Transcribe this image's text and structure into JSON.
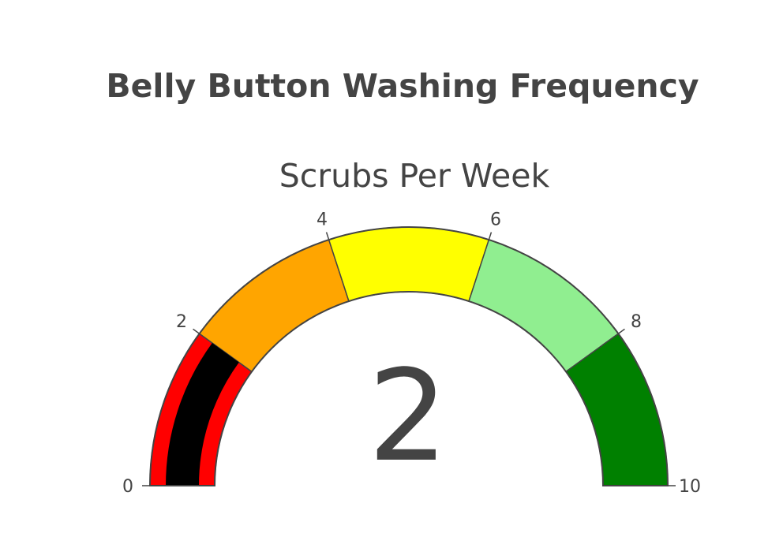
{
  "chart_data": {
    "type": "gauge",
    "title": "Belly Button Washing Frequency",
    "subtitle": "Scrubs Per Week",
    "value": 2,
    "value_label": "2",
    "range": [
      0,
      10
    ],
    "ticks": [
      {
        "value": 0,
        "label": "0"
      },
      {
        "value": 2,
        "label": "2"
      },
      {
        "value": 4,
        "label": "4"
      },
      {
        "value": 6,
        "label": "6"
      },
      {
        "value": 8,
        "label": "8"
      },
      {
        "value": 10,
        "label": "10"
      }
    ],
    "steps": [
      {
        "range": [
          0,
          2
        ],
        "color": "#ff0000"
      },
      {
        "range": [
          2,
          4
        ],
        "color": "#ffa500"
      },
      {
        "range": [
          4,
          6
        ],
        "color": "#ffff00"
      },
      {
        "range": [
          6,
          8
        ],
        "color": "#90ee90"
      },
      {
        "range": [
          8,
          10
        ],
        "color": "#008000"
      }
    ],
    "bar_color": "#000000",
    "border_color": "#444444",
    "text_color": "#444444"
  }
}
